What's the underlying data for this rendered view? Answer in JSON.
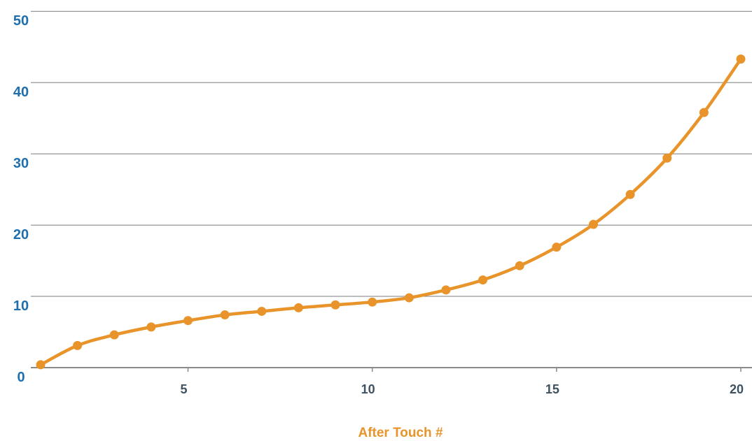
{
  "chart_data": {
    "type": "line",
    "title": "",
    "xlabel": "After Touch #",
    "ylabel": "",
    "xlim": [
      1,
      20.2
    ],
    "ylim": [
      0,
      51
    ],
    "grid": true,
    "legend": "none",
    "x_ticks": [
      5,
      10,
      15,
      20
    ],
    "y_ticks": [
      0,
      10,
      20,
      30,
      40,
      50
    ],
    "x_tick_labels": [
      "5",
      "10",
      "15",
      "20"
    ],
    "y_tick_labels": [
      "0",
      "10",
      "20",
      "30",
      "40",
      "50"
    ],
    "series": [
      {
        "x": [
          1,
          2,
          3,
          4,
          5,
          6,
          7,
          8,
          9,
          10,
          11,
          12,
          13,
          14,
          15,
          16,
          17,
          18,
          19,
          20
        ],
        "y": [
          0.4,
          3.1,
          4.6,
          5.7,
          6.6,
          7.4,
          7.9,
          8.4,
          8.8,
          9.2,
          9.8,
          10.9,
          12.3,
          14.3,
          16.9,
          20.1,
          24.3,
          29.4,
          35.8,
          43.3
        ]
      }
    ],
    "colors": {
      "line": "#E8942A",
      "ytick": "#1F6FAE",
      "xtick": "#3E5160",
      "xlabel": "#E8942A",
      "grid": "#7A7A7A",
      "axis": "#8A8A8A"
    }
  }
}
